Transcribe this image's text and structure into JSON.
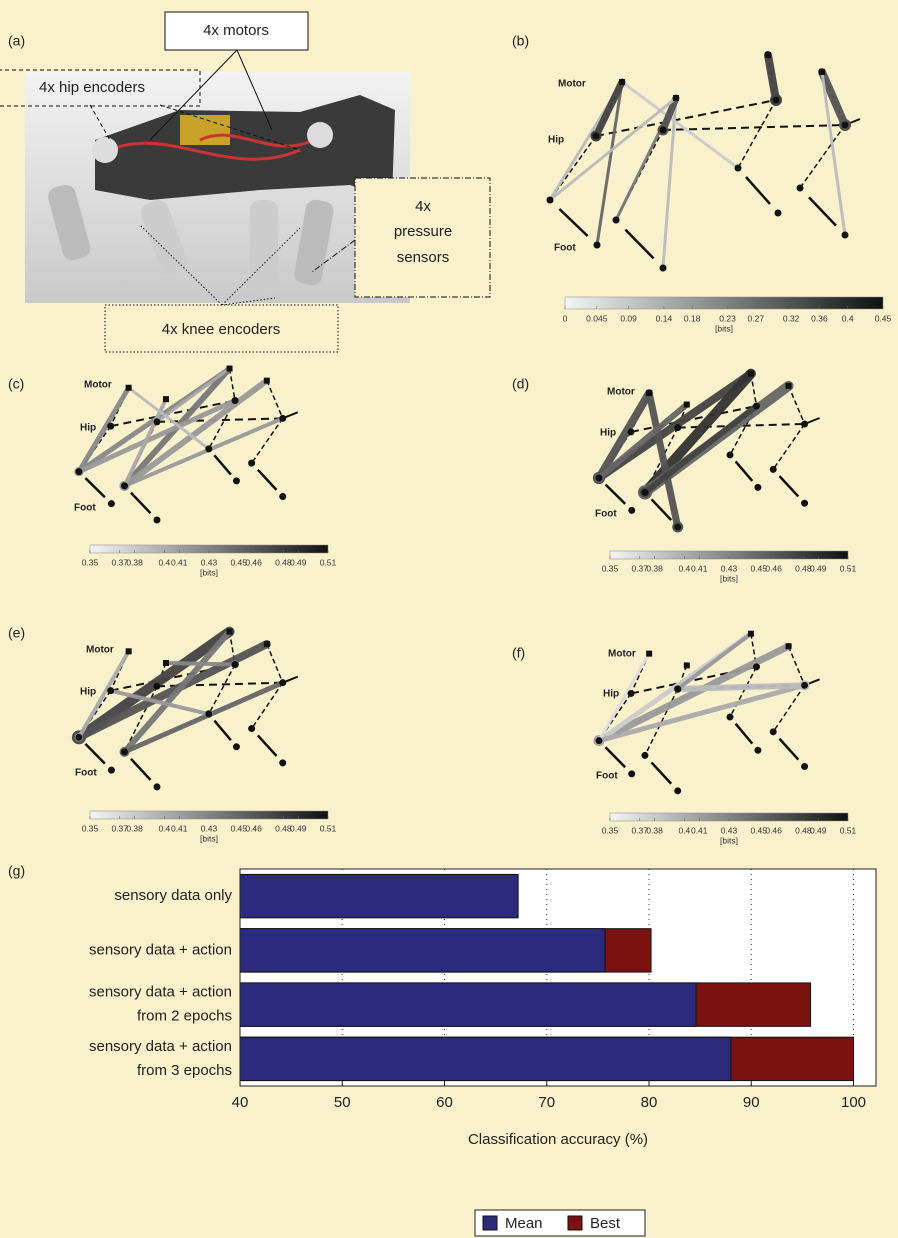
{
  "panels": {
    "a": {
      "label": "(a)",
      "callouts": {
        "motors": "4x motors",
        "hip_encoders": "4x hip encoders",
        "pressure_sensors": [
          "4x",
          "pressure",
          "sensors"
        ],
        "knee_encoders": "4x knee encoders"
      }
    },
    "b": {
      "label": "(b)",
      "nodes": {
        "motor": "Motor",
        "hip": "Hip",
        "foot": "Foot"
      },
      "colorbar": {
        "ticks": [
          0,
          0.045,
          0.09,
          0.14,
          0.18,
          0.23,
          0.27,
          0.32,
          0.36,
          0.4,
          0.45
        ],
        "unit": "[bits]"
      }
    },
    "c": {
      "label": "(c)",
      "nodes": {
        "motor": "Motor",
        "hip": "Hip",
        "foot": "Foot"
      },
      "colorbar": {
        "ticks": [
          0.35,
          0.37,
          0.38,
          0.4,
          0.41,
          0.43,
          0.45,
          0.46,
          0.48,
          0.49,
          0.51
        ],
        "unit": "[bits]"
      }
    },
    "d": {
      "label": "(d)",
      "nodes": {
        "motor": "Motor",
        "hip": "Hip",
        "foot": "Foot"
      },
      "colorbar": {
        "ticks": [
          0.35,
          0.37,
          0.38,
          0.4,
          0.41,
          0.43,
          0.45,
          0.46,
          0.48,
          0.49,
          0.51
        ],
        "unit": "[bits]"
      }
    },
    "e": {
      "label": "(e)",
      "nodes": {
        "motor": "Motor",
        "hip": "Hip",
        "foot": "Foot"
      },
      "colorbar": {
        "ticks": [
          0.35,
          0.37,
          0.38,
          0.4,
          0.41,
          0.43,
          0.45,
          0.46,
          0.48,
          0.49,
          0.51
        ],
        "unit": "[bits]"
      }
    },
    "f": {
      "label": "(f)",
      "nodes": {
        "motor": "Motor",
        "hip": "Hip",
        "foot": "Foot"
      },
      "colorbar": {
        "ticks": [
          0.35,
          0.37,
          0.38,
          0.4,
          0.41,
          0.43,
          0.45,
          0.46,
          0.48,
          0.49,
          0.51
        ],
        "unit": "[bits]"
      }
    },
    "g": {
      "label": "(g)"
    }
  },
  "chart_data": {
    "type": "bar",
    "orientation": "horizontal",
    "barmode": "overlay",
    "categories": [
      [
        "sensory data only"
      ],
      [
        "sensory data + action"
      ],
      [
        "sensory data + action",
        "from 2 epochs"
      ],
      [
        "sensory data + action",
        "from 3 epochs"
      ]
    ],
    "series": [
      {
        "name": "Mean",
        "color": "#2b2a7c",
        "values": [
          67.2,
          75.7,
          84.6,
          88
        ]
      },
      {
        "name": "Best",
        "color": "#7b1111",
        "values": [
          null,
          80.2,
          95.8,
          100
        ]
      }
    ],
    "xlabel": "Classification accuracy (%)",
    "xlim": [
      40,
      102.2
    ],
    "xticks": [
      40,
      50,
      60,
      70,
      80,
      90,
      100
    ],
    "grid": true,
    "legend": "bottom"
  }
}
